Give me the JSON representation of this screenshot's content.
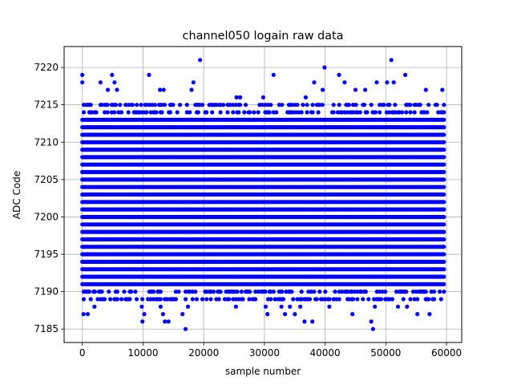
{
  "chart_data": {
    "type": "scatter",
    "title": "channel050 logain raw data",
    "xlabel": "sample number",
    "ylabel": "ADC Code",
    "xlim": [
      -3000,
      62500
    ],
    "ylim": [
      7183.2,
      7222.8
    ],
    "xticks": [
      0,
      10000,
      20000,
      30000,
      40000,
      50000,
      60000
    ],
    "yticks": [
      7185,
      7190,
      7195,
      7200,
      7205,
      7210,
      7215,
      7220
    ],
    "grid": true,
    "series": [
      {
        "color": "#0000ff",
        "x_range": [
          0,
          59600
        ],
        "dense_levels": [
          7191,
          7192,
          7193,
          7194,
          7195,
          7196,
          7197,
          7198,
          7199,
          7200,
          7201,
          7202,
          7203,
          7204,
          7205,
          7206,
          7207,
          7208,
          7209,
          7210,
          7211,
          7212,
          7213
        ],
        "sparse_levels": [
          7189,
          7190,
          7214,
          7215
        ],
        "outliers": [
          {
            "x": 0,
            "y": 7219
          },
          {
            "x": 0,
            "y": 7218
          },
          {
            "x": 200,
            "y": 7187
          },
          {
            "x": 900,
            "y": 7187
          },
          {
            "x": 3000,
            "y": 7218
          },
          {
            "x": 4900,
            "y": 7219
          },
          {
            "x": 5300,
            "y": 7218
          },
          {
            "x": 4200,
            "y": 7217
          },
          {
            "x": 5700,
            "y": 7217
          },
          {
            "x": 2000,
            "y": 7188
          },
          {
            "x": 3300,
            "y": 7189
          },
          {
            "x": 9800,
            "y": 7188
          },
          {
            "x": 9900,
            "y": 7186
          },
          {
            "x": 10200,
            "y": 7187
          },
          {
            "x": 11000,
            "y": 7219
          },
          {
            "x": 12800,
            "y": 7217
          },
          {
            "x": 13400,
            "y": 7217
          },
          {
            "x": 12900,
            "y": 7188
          },
          {
            "x": 13300,
            "y": 7187
          },
          {
            "x": 13600,
            "y": 7186
          },
          {
            "x": 14200,
            "y": 7186
          },
          {
            "x": 16500,
            "y": 7187
          },
          {
            "x": 17000,
            "y": 7185
          },
          {
            "x": 17400,
            "y": 7188
          },
          {
            "x": 18300,
            "y": 7218
          },
          {
            "x": 18000,
            "y": 7217
          },
          {
            "x": 19400,
            "y": 7221
          },
          {
            "x": 25300,
            "y": 7188
          },
          {
            "x": 29800,
            "y": 7216
          },
          {
            "x": 30500,
            "y": 7187
          },
          {
            "x": 30200,
            "y": 7188
          },
          {
            "x": 31500,
            "y": 7219
          },
          {
            "x": 32800,
            "y": 7188
          },
          {
            "x": 34200,
            "y": 7188
          },
          {
            "x": 33400,
            "y": 7187
          },
          {
            "x": 35000,
            "y": 7187
          },
          {
            "x": 36600,
            "y": 7186
          },
          {
            "x": 37900,
            "y": 7186
          },
          {
            "x": 38200,
            "y": 7218
          },
          {
            "x": 39900,
            "y": 7220
          },
          {
            "x": 39600,
            "y": 7217
          },
          {
            "x": 40700,
            "y": 7188
          },
          {
            "x": 42300,
            "y": 7219
          },
          {
            "x": 43200,
            "y": 7218
          },
          {
            "x": 44500,
            "y": 7187
          },
          {
            "x": 45000,
            "y": 7217
          },
          {
            "x": 46600,
            "y": 7217
          },
          {
            "x": 47600,
            "y": 7186
          },
          {
            "x": 47900,
            "y": 7185
          },
          {
            "x": 48200,
            "y": 7188
          },
          {
            "x": 48500,
            "y": 7218
          },
          {
            "x": 50200,
            "y": 7218
          },
          {
            "x": 50900,
            "y": 7221
          },
          {
            "x": 51300,
            "y": 7218
          },
          {
            "x": 52000,
            "y": 7188
          },
          {
            "x": 53200,
            "y": 7219
          },
          {
            "x": 53500,
            "y": 7188
          },
          {
            "x": 55200,
            "y": 7187
          },
          {
            "x": 56600,
            "y": 7217
          },
          {
            "x": 57200,
            "y": 7187
          },
          {
            "x": 59300,
            "y": 7217
          },
          {
            "x": 26000,
            "y": 7216
          },
          {
            "x": 25400,
            "y": 7216
          },
          {
            "x": 22500,
            "y": 7189
          },
          {
            "x": 36800,
            "y": 7216
          },
          {
            "x": 27500,
            "y": 7189
          },
          {
            "x": 35900,
            "y": 7188
          }
        ]
      }
    ]
  }
}
